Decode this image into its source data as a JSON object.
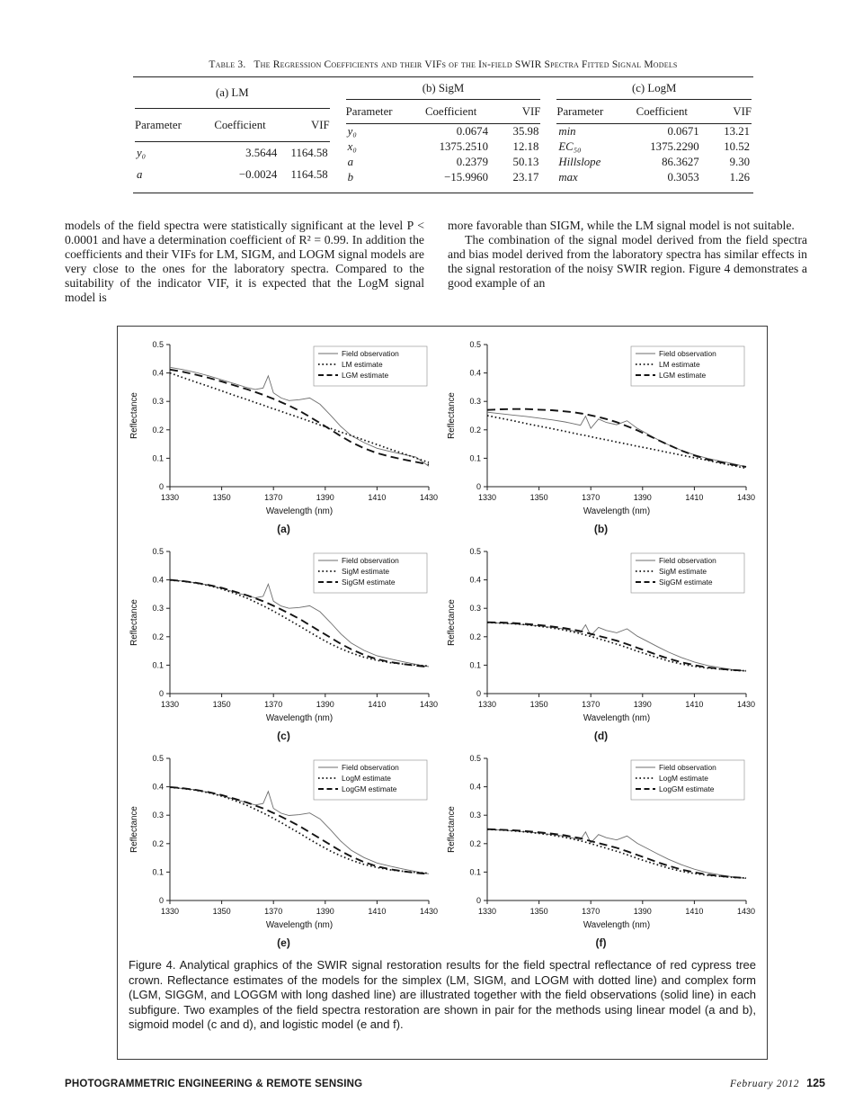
{
  "table": {
    "title": "Table 3.   The Regression Coefficients and their VIFs of the In-field SWIR Spectra Fitted Signal Models",
    "groups": [
      {
        "label": "(a) LM",
        "columns": [
          "Parameter",
          "Coefficient",
          "VIF"
        ],
        "rows": [
          [
            "y₀",
            "3.5644",
            "1164.58"
          ],
          [
            "a",
            "−0.0024",
            "1164.58"
          ]
        ]
      },
      {
        "label": "(b) SigM",
        "columns": [
          "Parameter",
          "Coefficient",
          "VIF"
        ],
        "rows": [
          [
            "y₀",
            "0.0674",
            "35.98"
          ],
          [
            "x₀",
            "1375.2510",
            "12.18"
          ],
          [
            "a",
            "0.2379",
            "50.13"
          ],
          [
            "b",
            "−15.9960",
            "23.17"
          ]
        ]
      },
      {
        "label": "(c) LogM",
        "columns": [
          "Parameter",
          "Coefficient",
          "VIF"
        ],
        "rows": [
          [
            "min",
            "0.0671",
            "13.21"
          ],
          [
            "EC₅₀",
            "1375.2290",
            "10.52"
          ],
          [
            "Hillslope",
            "86.3627",
            "9.30"
          ],
          [
            "max",
            "0.3053",
            "1.26"
          ]
        ]
      }
    ]
  },
  "body": {
    "left_paragraph": "models of the field spectra were statistically significant at the level P < 0.0001 and have a determination coefficient of R² = 0.99. In addition the coefficients and their VIFs for LM, SIGM, and LOGM signal models are very close to the ones for the laboratory spectra. Compared to the suitability of the indicator VIF, it is expected that the LogM signal model is",
    "right_paragraph_1": "more favorable than SIGM, while the LM signal model is not suitable.",
    "right_paragraph_2": "The combination of the signal model derived from the field spectra and bias model derived from the laboratory spectra has similar effects in the signal restoration of the noisy SWIR region. Figure 4 demonstrates a good example of an"
  },
  "figure": {
    "caption": "Figure 4. Analytical graphics of the SWIR signal restoration results for the field spectral reflectance of red cypress tree crown. Reflectance estimates of the models for the simplex (LM, SIGM, and LOGM with dotted line) and complex form (LGM, SIGGM, and LOGGM with long dashed line) are illustrated together with the field observations (solid line) in each subfigure. Two examples of the field spectra restoration are shown in pair for the methods using linear model (a and b), sigmoid model (c and d), and logistic model (e and f)."
  },
  "footer": {
    "journal": "PHOTOGRAMMETRIC ENGINEERING & REMOTE SENSING",
    "issue": "February 2012",
    "page": "125"
  },
  "chart_data": [
    {
      "type": "line",
      "label": "(a)",
      "xlabel": "Wavelength (nm)",
      "ylabel": "Reflectance",
      "xlim": [
        1330,
        1430
      ],
      "ylim": [
        0,
        0.5
      ],
      "xticks": [
        1330,
        1350,
        1370,
        1390,
        1410,
        1430
      ],
      "yticks": [
        0,
        0.1,
        0.2,
        0.3,
        0.4,
        0.5
      ],
      "legend_position": "top-right",
      "grid": false,
      "x": [
        1330,
        1335,
        1340,
        1345,
        1350,
        1355,
        1360,
        1363,
        1366,
        1368,
        1370,
        1373,
        1376,
        1380,
        1384,
        1388,
        1392,
        1396,
        1400,
        1405,
        1410,
        1415,
        1420,
        1425,
        1430
      ],
      "series": [
        {
          "name": "Field observation",
          "style": "solid",
          "values": [
            0.42,
            0.412,
            0.402,
            0.39,
            0.376,
            0.362,
            0.348,
            0.342,
            0.347,
            0.39,
            0.33,
            0.312,
            0.303,
            0.306,
            0.312,
            0.29,
            0.252,
            0.212,
            0.18,
            0.155,
            0.135,
            0.124,
            0.114,
            0.104,
            0.072
          ]
        },
        {
          "name": "LM estimate",
          "style": "dotted",
          "values": [
            0.4,
            0.384,
            0.368,
            0.353,
            0.337,
            0.321,
            0.306,
            0.296,
            0.287,
            0.28,
            0.274,
            0.265,
            0.255,
            0.243,
            0.23,
            0.217,
            0.205,
            0.192,
            0.18,
            0.164,
            0.148,
            0.132,
            0.117,
            0.101,
            0.085
          ]
        },
        {
          "name": "LGM estimate",
          "style": "dashed",
          "values": [
            0.412,
            0.404,
            0.394,
            0.383,
            0.37,
            0.356,
            0.342,
            0.333,
            0.323,
            0.316,
            0.309,
            0.297,
            0.285,
            0.267,
            0.246,
            0.224,
            0.201,
            0.178,
            0.157,
            0.135,
            0.118,
            0.106,
            0.096,
            0.087,
            0.078
          ]
        }
      ]
    },
    {
      "type": "line",
      "label": "(b)",
      "xlabel": "Wavelength (nm)",
      "ylabel": "Reflectance",
      "xlim": [
        1330,
        1430
      ],
      "ylim": [
        0,
        0.5
      ],
      "xticks": [
        1330,
        1350,
        1370,
        1390,
        1410,
        1430
      ],
      "yticks": [
        0,
        0.1,
        0.2,
        0.3,
        0.4,
        0.5
      ],
      "legend_position": "top-right",
      "grid": false,
      "x": [
        1330,
        1335,
        1340,
        1345,
        1350,
        1355,
        1360,
        1363,
        1366,
        1368,
        1370,
        1373,
        1376,
        1380,
        1384,
        1388,
        1392,
        1396,
        1400,
        1405,
        1410,
        1415,
        1420,
        1425,
        1430
      ],
      "series": [
        {
          "name": "Field observation",
          "style": "solid",
          "values": [
            0.262,
            0.257,
            0.252,
            0.247,
            0.241,
            0.235,
            0.228,
            0.222,
            0.216,
            0.248,
            0.205,
            0.238,
            0.226,
            0.218,
            0.232,
            0.205,
            0.185,
            0.165,
            0.147,
            0.128,
            0.112,
            0.1,
            0.09,
            0.081,
            0.07
          ]
        },
        {
          "name": "LM estimate",
          "style": "dotted",
          "values": [
            0.25,
            0.241,
            0.232,
            0.222,
            0.213,
            0.204,
            0.195,
            0.189,
            0.183,
            0.18,
            0.176,
            0.17,
            0.165,
            0.157,
            0.15,
            0.142,
            0.135,
            0.128,
            0.12,
            0.111,
            0.102,
            0.093,
            0.083,
            0.074,
            0.065
          ]
        },
        {
          "name": "LGM estimate",
          "style": "dashed",
          "values": [
            0.27,
            0.272,
            0.273,
            0.273,
            0.271,
            0.269,
            0.265,
            0.262,
            0.258,
            0.255,
            0.251,
            0.245,
            0.238,
            0.227,
            0.213,
            0.198,
            0.181,
            0.164,
            0.147,
            0.127,
            0.11,
            0.096,
            0.086,
            0.077,
            0.07
          ]
        }
      ]
    },
    {
      "type": "line",
      "label": "(c)",
      "xlabel": "Wavelength (nm)",
      "ylabel": "Reflectance",
      "xlim": [
        1330,
        1430
      ],
      "ylim": [
        0,
        0.5
      ],
      "xticks": [
        1330,
        1350,
        1370,
        1390,
        1410,
        1430
      ],
      "yticks": [
        0,
        0.1,
        0.2,
        0.3,
        0.4,
        0.5
      ],
      "legend_position": "top-right",
      "grid": false,
      "x": [
        1330,
        1335,
        1340,
        1345,
        1350,
        1355,
        1360,
        1363,
        1366,
        1368,
        1370,
        1373,
        1376,
        1380,
        1384,
        1388,
        1392,
        1396,
        1400,
        1405,
        1410,
        1415,
        1420,
        1425,
        1430
      ],
      "series": [
        {
          "name": "Field observation",
          "style": "solid",
          "values": [
            0.4,
            0.396,
            0.39,
            0.381,
            0.37,
            0.357,
            0.344,
            0.337,
            0.342,
            0.385,
            0.325,
            0.308,
            0.3,
            0.303,
            0.309,
            0.288,
            0.25,
            0.21,
            0.178,
            0.152,
            0.133,
            0.122,
            0.112,
            0.103,
            0.095
          ]
        },
        {
          "name": "SigM estimate",
          "style": "dotted",
          "values": [
            0.399,
            0.395,
            0.389,
            0.38,
            0.368,
            0.353,
            0.335,
            0.322,
            0.309,
            0.3,
            0.29,
            0.275,
            0.259,
            0.238,
            0.216,
            0.195,
            0.175,
            0.158,
            0.143,
            0.128,
            0.117,
            0.109,
            0.104,
            0.1,
            0.097
          ]
        },
        {
          "name": "SigGM estimate",
          "style": "dashed",
          "values": [
            0.4,
            0.396,
            0.39,
            0.382,
            0.372,
            0.359,
            0.345,
            0.335,
            0.325,
            0.317,
            0.309,
            0.296,
            0.282,
            0.263,
            0.241,
            0.219,
            0.197,
            0.175,
            0.156,
            0.136,
            0.121,
            0.111,
            0.104,
            0.098,
            0.094
          ]
        }
      ]
    },
    {
      "type": "line",
      "label": "(d)",
      "xlabel": "Wavelength (nm)",
      "ylabel": "Reflectance",
      "xlim": [
        1330,
        1430
      ],
      "ylim": [
        0,
        0.5
      ],
      "xticks": [
        1330,
        1350,
        1370,
        1390,
        1410,
        1430
      ],
      "yticks": [
        0,
        0.1,
        0.2,
        0.3,
        0.4,
        0.5
      ],
      "legend_position": "top-right",
      "grid": false,
      "x": [
        1330,
        1335,
        1340,
        1345,
        1350,
        1355,
        1360,
        1363,
        1366,
        1368,
        1370,
        1373,
        1376,
        1380,
        1384,
        1388,
        1392,
        1396,
        1400,
        1405,
        1410,
        1415,
        1420,
        1425,
        1430
      ],
      "series": [
        {
          "name": "Field observation",
          "style": "solid",
          "values": [
            0.25,
            0.248,
            0.245,
            0.242,
            0.238,
            0.233,
            0.227,
            0.221,
            0.215,
            0.242,
            0.204,
            0.233,
            0.222,
            0.214,
            0.228,
            0.202,
            0.183,
            0.164,
            0.146,
            0.127,
            0.111,
            0.099,
            0.091,
            0.084,
            0.079
          ]
        },
        {
          "name": "SigM estimate",
          "style": "dotted",
          "values": [
            0.25,
            0.248,
            0.246,
            0.242,
            0.237,
            0.231,
            0.223,
            0.217,
            0.211,
            0.206,
            0.201,
            0.193,
            0.185,
            0.174,
            0.162,
            0.149,
            0.137,
            0.126,
            0.115,
            0.104,
            0.096,
            0.09,
            0.086,
            0.082,
            0.08
          ]
        },
        {
          "name": "SigGM estimate",
          "style": "dashed",
          "values": [
            0.251,
            0.25,
            0.248,
            0.245,
            0.241,
            0.236,
            0.23,
            0.225,
            0.22,
            0.215,
            0.21,
            0.203,
            0.196,
            0.186,
            0.174,
            0.161,
            0.148,
            0.135,
            0.123,
            0.11,
            0.1,
            0.092,
            0.087,
            0.083,
            0.08
          ]
        }
      ]
    },
    {
      "type": "line",
      "label": "(e)",
      "xlabel": "Wavelength (nm)",
      "ylabel": "Reflectance",
      "xlim": [
        1330,
        1430
      ],
      "ylim": [
        0,
        0.5
      ],
      "xticks": [
        1330,
        1350,
        1370,
        1390,
        1410,
        1430
      ],
      "yticks": [
        0,
        0.1,
        0.2,
        0.3,
        0.4,
        0.5
      ],
      "legend_position": "top-right",
      "grid": false,
      "x": [
        1330,
        1335,
        1340,
        1345,
        1350,
        1355,
        1360,
        1363,
        1366,
        1368,
        1370,
        1373,
        1376,
        1380,
        1384,
        1388,
        1392,
        1396,
        1400,
        1405,
        1410,
        1415,
        1420,
        1425,
        1430
      ],
      "series": [
        {
          "name": "Field observation",
          "style": "solid",
          "values": [
            0.398,
            0.394,
            0.389,
            0.38,
            0.369,
            0.356,
            0.343,
            0.336,
            0.341,
            0.384,
            0.324,
            0.307,
            0.299,
            0.302,
            0.308,
            0.287,
            0.249,
            0.209,
            0.177,
            0.151,
            0.132,
            0.121,
            0.111,
            0.102,
            0.094
          ]
        },
        {
          "name": "LogM estimate",
          "style": "dotted",
          "values": [
            0.398,
            0.394,
            0.388,
            0.379,
            0.367,
            0.352,
            0.334,
            0.321,
            0.308,
            0.299,
            0.289,
            0.274,
            0.258,
            0.237,
            0.215,
            0.194,
            0.174,
            0.157,
            0.142,
            0.127,
            0.116,
            0.108,
            0.103,
            0.099,
            0.096
          ]
        },
        {
          "name": "LogGM estimate",
          "style": "dashed",
          "values": [
            0.399,
            0.395,
            0.389,
            0.381,
            0.371,
            0.358,
            0.344,
            0.334,
            0.324,
            0.316,
            0.308,
            0.295,
            0.281,
            0.262,
            0.24,
            0.218,
            0.196,
            0.174,
            0.155,
            0.135,
            0.12,
            0.11,
            0.103,
            0.097,
            0.093
          ]
        }
      ]
    },
    {
      "type": "line",
      "label": "(f)",
      "xlabel": "Wavelength (nm)",
      "ylabel": "Reflectance",
      "xlim": [
        1330,
        1430
      ],
      "ylim": [
        0,
        0.5
      ],
      "xticks": [
        1330,
        1350,
        1370,
        1390,
        1410,
        1430
      ],
      "yticks": [
        0,
        0.1,
        0.2,
        0.3,
        0.4,
        0.5
      ],
      "legend_position": "top-right",
      "grid": false,
      "x": [
        1330,
        1335,
        1340,
        1345,
        1350,
        1355,
        1360,
        1363,
        1366,
        1368,
        1370,
        1373,
        1376,
        1380,
        1384,
        1388,
        1392,
        1396,
        1400,
        1405,
        1410,
        1415,
        1420,
        1425,
        1430
      ],
      "series": [
        {
          "name": "Field observation",
          "style": "solid",
          "values": [
            0.25,
            0.248,
            0.245,
            0.241,
            0.237,
            0.232,
            0.226,
            0.22,
            0.214,
            0.241,
            0.203,
            0.232,
            0.221,
            0.213,
            0.227,
            0.201,
            0.182,
            0.163,
            0.145,
            0.126,
            0.11,
            0.098,
            0.09,
            0.083,
            0.078
          ]
        },
        {
          "name": "LogM estimate",
          "style": "dotted",
          "values": [
            0.25,
            0.248,
            0.245,
            0.241,
            0.236,
            0.23,
            0.222,
            0.216,
            0.21,
            0.205,
            0.2,
            0.192,
            0.184,
            0.173,
            0.161,
            0.148,
            0.136,
            0.125,
            0.114,
            0.103,
            0.095,
            0.089,
            0.085,
            0.081,
            0.079
          ]
        },
        {
          "name": "LogGM estimate",
          "style": "dashed",
          "values": [
            0.251,
            0.249,
            0.247,
            0.244,
            0.24,
            0.235,
            0.229,
            0.224,
            0.219,
            0.214,
            0.209,
            0.202,
            0.195,
            0.185,
            0.173,
            0.16,
            0.147,
            0.134,
            0.122,
            0.109,
            0.099,
            0.091,
            0.086,
            0.082,
            0.079
          ]
        }
      ]
    }
  ]
}
